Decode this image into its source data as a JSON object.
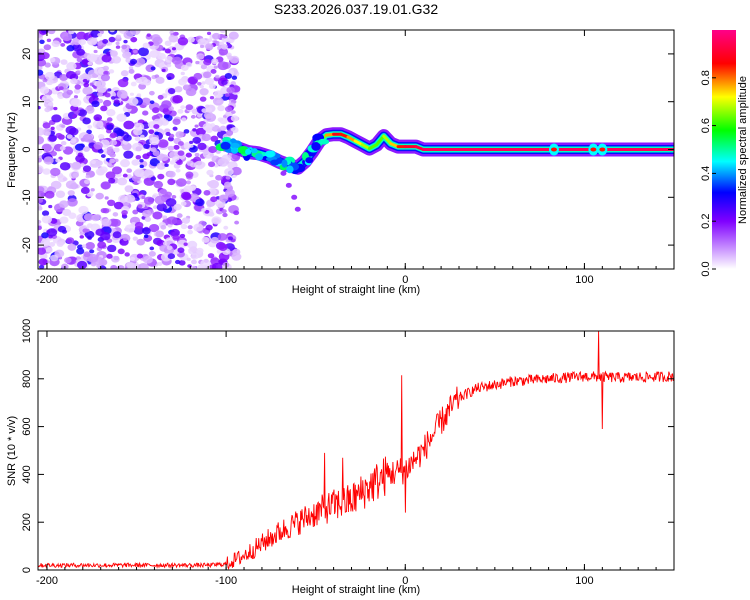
{
  "title": "S233.2026.037.19.01.G32",
  "chart_data": [
    {
      "type": "heatmap",
      "xlabel": "Height of straight line (km)",
      "ylabel": "Frequency (Hz)",
      "xlim": [
        -205,
        150
      ],
      "ylim": [
        -25,
        25
      ],
      "xticks": [
        -200,
        -100,
        0,
        100
      ],
      "yticks": [
        -20,
        -10,
        0,
        10,
        20
      ],
      "colorbar": {
        "label": "Normalized spectral amplitude",
        "range": [
          0,
          1
        ],
        "ticks": [
          0.0,
          0.2,
          0.4,
          0.6,
          0.8
        ],
        "colors": [
          "#ffffff",
          "#8800ff",
          "#0000ff",
          "#00ffff",
          "#00ff00",
          "#ffff00",
          "#ff0000",
          "#ff00ff"
        ]
      },
      "noise_region_x": [
        -205,
        -100
      ],
      "ridge": [
        [
          -102,
          1.2,
          0.45
        ],
        [
          -95,
          0.5,
          0.55
        ],
        [
          -88,
          -0.5,
          0.45
        ],
        [
          -82,
          -0.8,
          0.5
        ],
        [
          -76,
          -1.5,
          0.45
        ],
        [
          -70,
          -2.6,
          0.5
        ],
        [
          -65,
          -3.3,
          0.45
        ],
        [
          -60,
          -3.8,
          0.5
        ],
        [
          -56,
          -2.5,
          0.45
        ],
        [
          -52,
          -0.5,
          0.55
        ],
        [
          -48,
          1.8,
          0.6
        ],
        [
          -44,
          3.0,
          0.7
        ],
        [
          -40,
          3.2,
          0.85
        ],
        [
          -36,
          3.2,
          0.9
        ],
        [
          -32,
          2.6,
          0.8
        ],
        [
          -28,
          1.8,
          0.75
        ],
        [
          -24,
          1.0,
          0.7
        ],
        [
          -20,
          0.2,
          0.65
        ],
        [
          -16,
          1.0,
          0.6
        ],
        [
          -12,
          2.8,
          0.65
        ],
        [
          -8,
          1.2,
          0.7
        ],
        [
          -4,
          0.6,
          0.8
        ],
        [
          0,
          0.6,
          0.9
        ],
        [
          6,
          0.6,
          0.9
        ],
        [
          10,
          0.0,
          0.95
        ],
        [
          150,
          0.0,
          0.95
        ]
      ],
      "ridge_bumps": [
        [
          83,
          0.85
        ],
        [
          105,
          0.85
        ],
        [
          110,
          0.85
        ]
      ]
    },
    {
      "type": "line",
      "xlabel": "Height of straight line (km)",
      "ylabel": "SNR (10 * v/v)",
      "xlim": [
        -205,
        150
      ],
      "ylim": [
        0,
        1000
      ],
      "xticks": [
        -200,
        -100,
        0,
        100
      ],
      "yticks": [
        0,
        200,
        400,
        600,
        800,
        1000
      ],
      "color": "#ff0000",
      "series_envelope": {
        "x": [
          -205,
          -110,
          -100,
          -90,
          -80,
          -70,
          -60,
          -50,
          -40,
          -30,
          -20,
          -10,
          0,
          10,
          20,
          30,
          40,
          60,
          80,
          100,
          120,
          150
        ],
        "y": [
          20,
          20,
          25,
          60,
          110,
          160,
          200,
          240,
          270,
          290,
          350,
          400,
          420,
          500,
          620,
          720,
          760,
          790,
          800,
          810,
          805,
          810
        ]
      },
      "spikes": [
        [
          -45,
          490
        ],
        [
          -35,
          470
        ],
        [
          -2,
          815
        ],
        [
          0,
          240
        ],
        [
          108,
          1000
        ],
        [
          110,
          590
        ]
      ]
    }
  ]
}
